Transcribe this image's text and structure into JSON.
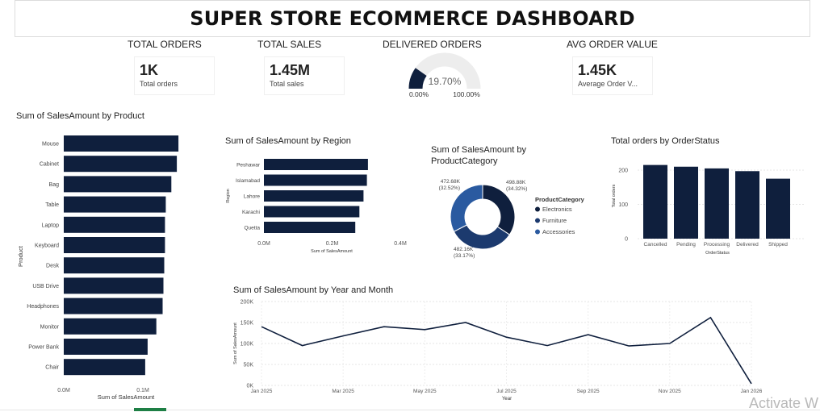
{
  "header": {
    "title": "SUPER STORE ECOMMERCE DASHBOARD"
  },
  "kpis": [
    {
      "heading": "TOTAL ORDERS",
      "value": "1K",
      "label": "Total orders"
    },
    {
      "heading": "TOTAL SALES",
      "value": "1.45M",
      "label": "Total sales"
    },
    {
      "heading": "AVG ORDER VALUE",
      "value": "1.45K",
      "label": "Average Order V..."
    }
  ],
  "delivered": {
    "heading": "DELIVERED ORDERS",
    "value": "19.70%",
    "min": "0.00%",
    "max": "100.00%",
    "fraction": 0.197
  },
  "colors": {
    "navy": "#0f1f3d",
    "mid": "#1c3a6e",
    "blue": "#2a5aa0",
    "gauge_bg": "#ededed"
  },
  "watermark": "Activate W",
  "chart_data": [
    {
      "type": "bar",
      "title": "Sum of SalesAmount by Product",
      "xlabel": "Sum of SalesAmount",
      "ylabel": "Product",
      "categories": [
        "Mouse",
        "Cabinet",
        "Bag",
        "Table",
        "Laptop",
        "Keyboard",
        "Desk",
        "USB Drive",
        "Headphones",
        "Monitor",
        "Power Bank",
        "Chair"
      ],
      "values": [
        145000,
        143000,
        136000,
        129000,
        128000,
        128000,
        127000,
        126000,
        125000,
        117000,
        106000,
        103000
      ],
      "xticks": [
        "0.0M",
        "0.1M"
      ],
      "xlim": [
        0,
        200000
      ]
    },
    {
      "type": "bar",
      "title": "Sum of SalesAmount by Region",
      "xlabel": "Sum of SalesAmount",
      "ylabel": "Region",
      "categories": [
        "Peshawar",
        "Islamabad",
        "Lahore",
        "Karachi",
        "Quetta"
      ],
      "values": [
        305000,
        302000,
        292000,
        280000,
        268000
      ],
      "xticks": [
        "0.0M",
        "0.2M",
        "0.4M"
      ],
      "xlim": [
        0,
        400000
      ]
    },
    {
      "type": "pie",
      "title": "Sum of SalesAmount by ProductCategory",
      "legend_title": "ProductCategory",
      "categories": [
        "Electronics",
        "Furniture",
        "Accessories"
      ],
      "values": [
        498880,
        482160,
        472680
      ],
      "value_labels": [
        "498.88K",
        "482.16K",
        "472.68K"
      ],
      "percent_labels": [
        "(34.32%)",
        "(33.17%)",
        "(32.52%)"
      ],
      "colors": [
        "#0f1f3d",
        "#1c3a6e",
        "#2a5aa0"
      ]
    },
    {
      "type": "bar",
      "title": "Total orders by OrderStatus",
      "xlabel": "OrderStatus",
      "ylabel": "Total orders",
      "categories": [
        "Cancelled",
        "Pending",
        "Processing",
        "Delivered",
        "Shipped"
      ],
      "values": [
        215,
        210,
        205,
        197,
        175
      ],
      "yticks": [
        "0",
        "100",
        "200"
      ],
      "ylim": [
        0,
        250
      ]
    },
    {
      "type": "line",
      "title": "Sum of SalesAmount by Year and Month",
      "xlabel": "Year",
      "ylabel": "Sum of SalesAmount",
      "x": [
        "Jan 2025",
        "Feb 2025",
        "Mar 2025",
        "Apr 2025",
        "May 2025",
        "Jun 2025",
        "Jul 2025",
        "Aug 2025",
        "Sep 2025",
        "Oct 2025",
        "Nov 2025",
        "Dec 2025",
        "Jan 2026"
      ],
      "values": [
        140000,
        95000,
        118000,
        140000,
        133000,
        150000,
        115000,
        95000,
        121000,
        94000,
        100000,
        162000,
        4000
      ],
      "xticks": [
        "Jan 2025",
        "Mar 2025",
        "May 2025",
        "Jul 2025",
        "Sep 2025",
        "Nov 2025",
        "Jan 2026"
      ],
      "yticks": [
        "0K",
        "50K",
        "100K",
        "150K",
        "200K"
      ],
      "ylim": [
        0,
        200000
      ]
    }
  ]
}
